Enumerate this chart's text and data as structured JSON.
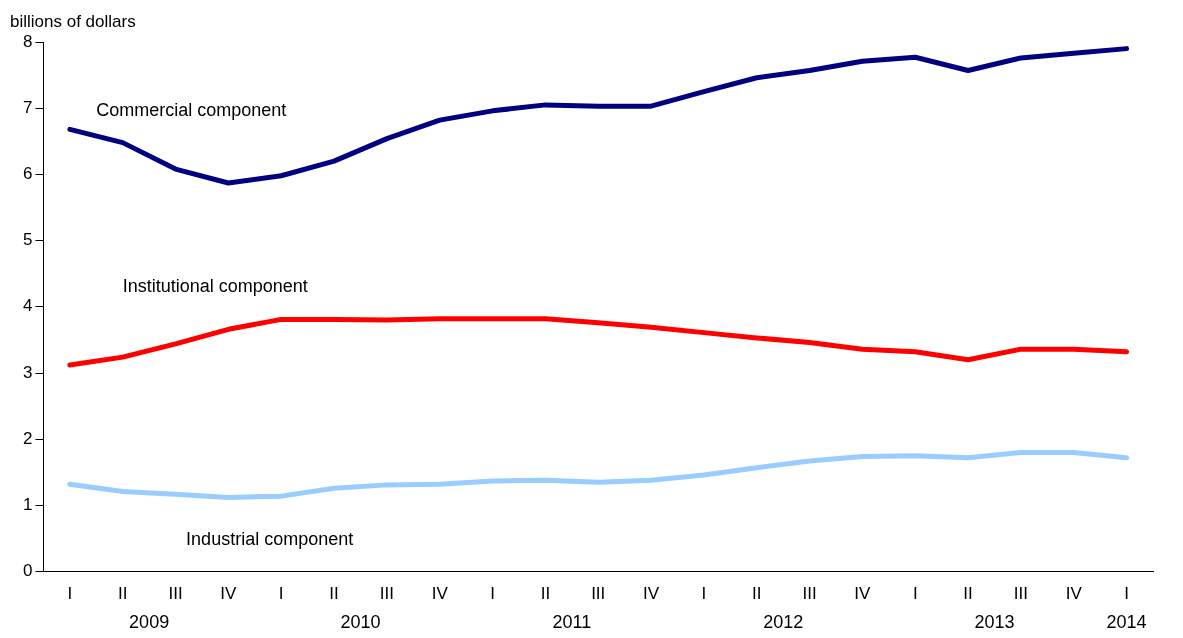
{
  "chart_data": {
    "type": "line",
    "ylabel": "billions of dollars",
    "categories": [
      "I",
      "II",
      "III",
      "IV",
      "I",
      "II",
      "III",
      "IV",
      "I",
      "II",
      "III",
      "IV",
      "I",
      "II",
      "III",
      "IV",
      "I",
      "II",
      "III",
      "IV",
      "I"
    ],
    "annotations": [
      "2009",
      "2010",
      "2011",
      "2012",
      "2013",
      "2014"
    ],
    "ylim": [
      0,
      8
    ],
    "yticks": [
      0,
      1,
      2,
      3,
      4,
      5,
      6,
      7,
      8
    ],
    "grid": false,
    "legend": false,
    "marker": "none",
    "line_style": "solid",
    "series": [
      {
        "name": "Commercial component",
        "color": "#000080",
        "values": [
          6.68,
          6.48,
          6.08,
          5.87,
          5.98,
          6.2,
          6.54,
          6.82,
          6.96,
          7.05,
          7.03,
          7.03,
          7.25,
          7.46,
          7.57,
          7.71,
          7.77,
          7.57,
          7.76,
          7.83,
          7.9
        ]
      },
      {
        "name": "Institutional component",
        "color": "#ff0000",
        "values": [
          3.12,
          3.24,
          3.44,
          3.66,
          3.81,
          3.81,
          3.8,
          3.82,
          3.82,
          3.82,
          3.76,
          3.69,
          3.61,
          3.53,
          3.46,
          3.36,
          3.32,
          3.2,
          3.36,
          3.36,
          3.32
        ]
      },
      {
        "name": "Industrial component",
        "color": "#99ccff",
        "values": [
          1.32,
          1.21,
          1.17,
          1.12,
          1.14,
          1.26,
          1.31,
          1.32,
          1.37,
          1.38,
          1.35,
          1.38,
          1.46,
          1.57,
          1.67,
          1.74,
          1.75,
          1.72,
          1.8,
          1.8,
          1.72
        ]
      }
    ]
  }
}
